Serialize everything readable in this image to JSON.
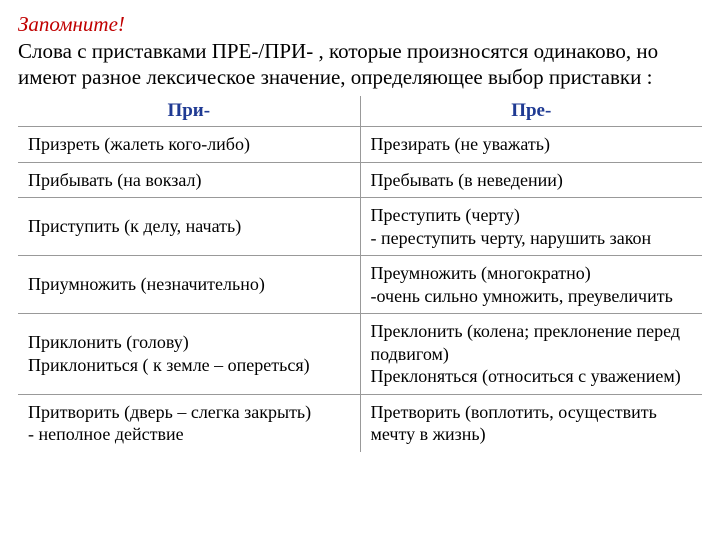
{
  "colors": {
    "accent_red": "#c00000",
    "blue_header": "#1f3a93",
    "border": "#999999",
    "text": "#000000",
    "background": "#ffffff"
  },
  "typography": {
    "font_family": "Times New Roman",
    "heading_fontsize": 21,
    "intro_fontsize": 21,
    "table_header_fontsize": 19,
    "cell_fontsize": 18
  },
  "heading": {
    "remember": "Запомните",
    "exclam": "!"
  },
  "intro": "Слова с приставками ПРЕ-/ПРИ- , которые произносятся одинаково, но имеют разное  лексическое значение, определяющее выбор приставки :",
  "table": {
    "columns": [
      "При-",
      "Пре-"
    ],
    "column_widths": [
      "50%",
      "50%"
    ],
    "rows": [
      {
        "pri": "Призреть (жалеть кого-либо)",
        "pre": "Презирать (не уважать)"
      },
      {
        "pri": "Прибывать (на вокзал)",
        "pre": "Пребывать (в неведении)"
      },
      {
        "pri": "Приступить (к делу, начать)",
        "pre": "Преступить (черту)\n- переступить черту, нарушить закон"
      },
      {
        "pri": "Приумножить (незначительно)",
        "pre": "Преумножить (многократно)\n-очень сильно умножить, преувеличить"
      },
      {
        "pri": "Приклонить (голову)\nПриклониться ( к земле – опереться)",
        "pre": "Преклонить (колена; преклонение перед подвигом)\nПреклоняться (относиться с уважением)"
      },
      {
        "pri": "Притворить (дверь – слегка закрыть)\n- неполное действие",
        "pre": "Претворить (воплотить, осуществить мечту в жизнь)"
      }
    ]
  }
}
